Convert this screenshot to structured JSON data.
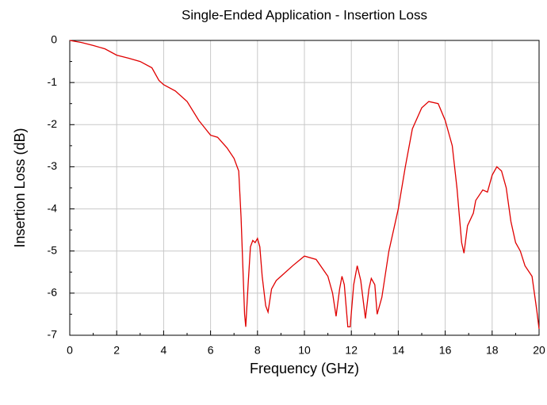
{
  "chart_data": {
    "type": "line",
    "title": "Single-Ended Application - Insertion Loss",
    "xlabel": "Frequency (GHz)",
    "ylabel": "Insertion Loss (dB)",
    "xlim": [
      0,
      20
    ],
    "ylim": [
      -7,
      0
    ],
    "xticks": [
      0,
      2,
      4,
      6,
      8,
      10,
      12,
      14,
      16,
      18,
      20
    ],
    "yticks": [
      0,
      -1,
      -2,
      -3,
      -4,
      -5,
      -6,
      -7
    ],
    "xminorticks": [
      1,
      3,
      5,
      7,
      9,
      11,
      13,
      15,
      17,
      19
    ],
    "yminorticks": [
      -0.5,
      -1.5,
      -2.5,
      -3.5,
      -4.5,
      -5.5,
      -6.5
    ],
    "grid": true,
    "series": [
      {
        "color": "#e00000",
        "x": [
          0,
          0.5,
          1,
          1.5,
          2,
          2.5,
          3,
          3.5,
          3.8,
          4,
          4.5,
          5,
          5.5,
          6,
          6.3,
          6.7,
          7,
          7.2,
          7.3,
          7.45,
          7.5,
          7.6,
          7.7,
          7.8,
          7.9,
          8,
          8.1,
          8.2,
          8.35,
          8.45,
          8.6,
          8.8,
          9,
          9.5,
          10,
          10.5,
          11,
          11.2,
          11.35,
          11.5,
          11.6,
          11.7,
          11.85,
          11.95,
          12.1,
          12.25,
          12.4,
          12.6,
          12.75,
          12.85,
          13,
          13.1,
          13.3,
          13.6,
          14,
          14.3,
          14.6,
          15,
          15.3,
          15.7,
          16,
          16.3,
          16.5,
          16.7,
          16.8,
          16.95,
          17.2,
          17.3,
          17.6,
          17.8,
          18,
          18.2,
          18.4,
          18.6,
          18.8,
          19,
          19.2,
          19.4,
          19.7,
          19.9,
          20
        ],
        "values": [
          0,
          -0.05,
          -0.12,
          -0.2,
          -0.35,
          -0.42,
          -0.5,
          -0.65,
          -0.95,
          -1.05,
          -1.2,
          -1.45,
          -1.9,
          -2.25,
          -2.3,
          -2.55,
          -2.8,
          -3.1,
          -4.2,
          -6.5,
          -6.8,
          -5.8,
          -4.9,
          -4.75,
          -4.8,
          -4.7,
          -4.9,
          -5.6,
          -6.3,
          -6.45,
          -5.9,
          -5.7,
          -5.6,
          -5.35,
          -5.12,
          -5.2,
          -5.6,
          -6.0,
          -6.55,
          -5.9,
          -5.6,
          -5.8,
          -6.8,
          -6.8,
          -5.8,
          -5.35,
          -5.7,
          -6.6,
          -5.9,
          -5.65,
          -5.8,
          -6.5,
          -6.1,
          -5.0,
          -4.0,
          -3.0,
          -2.1,
          -1.6,
          -1.45,
          -1.5,
          -1.9,
          -2.5,
          -3.5,
          -4.8,
          -5.05,
          -4.4,
          -4.1,
          -3.8,
          -3.55,
          -3.6,
          -3.2,
          -3.0,
          -3.1,
          -3.5,
          -4.3,
          -4.8,
          -5.0,
          -5.35,
          -5.6,
          -6.4,
          -6.85
        ]
      }
    ]
  }
}
